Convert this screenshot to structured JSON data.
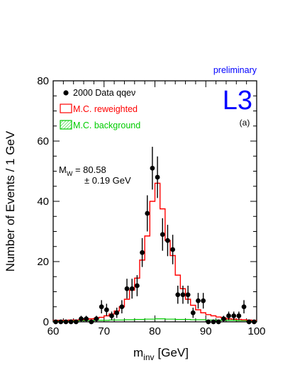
{
  "chart_data": {
    "type": "histogram",
    "header": "preliminary",
    "experiment_logo": "L3",
    "panel_label": "(a)",
    "xlabel": "m",
    "xlabel_sub": "inv",
    "xlabel_unit": "[GeV]",
    "ylabel": "Number of Events / 1 GeV",
    "xlim": [
      60,
      100
    ],
    "ylim": [
      0,
      80
    ],
    "x_ticks": [
      "60",
      "70",
      "80",
      "90",
      "100"
    ],
    "y_ticks": [
      "0",
      "20",
      "40",
      "60",
      "80"
    ],
    "legend": [
      {
        "label": "2000 Data qqeν",
        "marker": "dot"
      },
      {
        "label": "M.C. reweighted",
        "marker": "box-red"
      },
      {
        "label": "M.C. background",
        "marker": "box-green-hatched"
      }
    ],
    "annotation": {
      "line1_main": "M",
      "line1_sub": "W",
      "line1_value": " = 80.58",
      "line2": "± 0.19 GeV"
    },
    "colors": {
      "data": "#000000",
      "mc": "#ff0000",
      "background": "#00cc00",
      "header": "#0000ff",
      "logo": "#0000ff"
    },
    "series": [
      {
        "kind": "data-points",
        "x": [
          60.5,
          61.5,
          62.5,
          63.5,
          64.5,
          65.5,
          66.5,
          67.5,
          68.5,
          69.5,
          70.5,
          71.5,
          72.5,
          73.5,
          74.5,
          75.5,
          76.5,
          77.5,
          78.5,
          79.5,
          80.5,
          81.5,
          82.5,
          83.5,
          84.5,
          85.5,
          86.5,
          87.5,
          88.5,
          89.5,
          90.5,
          91.5,
          92.5,
          93.5,
          94.5,
          95.5,
          96.5,
          97.5,
          98.5,
          99.5
        ],
        "y": [
          0,
          0,
          0,
          0,
          0,
          1,
          1,
          0,
          1,
          5,
          4,
          2,
          3,
          5,
          11,
          11,
          12,
          23,
          36,
          51,
          48,
          29,
          27,
          24,
          9,
          9,
          9,
          3,
          7,
          7,
          0,
          0,
          0,
          1,
          2,
          2,
          2,
          5,
          0,
          0
        ],
        "err": [
          0,
          0,
          0,
          0,
          0,
          1,
          1,
          0,
          1,
          2.2,
          2,
          1.4,
          1.7,
          2.2,
          3.3,
          3.3,
          3.5,
          4.8,
          6,
          7.1,
          6.9,
          5.4,
          5.2,
          4.9,
          3,
          3,
          3,
          1.7,
          2.6,
          2.6,
          0,
          0,
          0,
          1,
          1.4,
          1.4,
          1.4,
          2.2,
          0,
          0
        ]
      },
      {
        "kind": "mc-reweighted",
        "x": [
          60.5,
          61.5,
          62.5,
          63.5,
          64.5,
          65.5,
          66.5,
          67.5,
          68.5,
          69.5,
          70.5,
          71.5,
          72.5,
          73.5,
          74.5,
          75.5,
          76.5,
          77.5,
          78.5,
          79.5,
          80.5,
          81.5,
          82.5,
          83.5,
          84.5,
          85.5,
          86.5,
          87.5,
          88.5,
          89.5,
          90.5,
          91.5,
          92.5,
          93.5,
          94.5,
          95.5,
          96.5,
          97.5,
          98.5,
          99.5
        ],
        "y": [
          0.5,
          0.5,
          0.5,
          0.6,
          0.6,
          0.7,
          0.8,
          1,
          1.2,
          1.5,
          2,
          2.6,
          3.6,
          5,
          7.5,
          10.5,
          14.5,
          20.5,
          28.5,
          40,
          46,
          37.5,
          27,
          22,
          15.5,
          11,
          7.5,
          5.5,
          4,
          3,
          2.4,
          2,
          1.6,
          1.3,
          1,
          0.9,
          0.8,
          0.7,
          0.6,
          0.5
        ]
      },
      {
        "kind": "mc-background",
        "x": [
          60.5,
          61.5,
          62.5,
          63.5,
          64.5,
          65.5,
          66.5,
          67.5,
          68.5,
          69.5,
          70.5,
          71.5,
          72.5,
          73.5,
          74.5,
          75.5,
          76.5,
          77.5,
          78.5,
          79.5,
          80.5,
          81.5,
          82.5,
          83.5,
          84.5,
          85.5,
          86.5,
          87.5,
          88.5,
          89.5,
          90.5,
          91.5,
          92.5,
          93.5,
          94.5,
          95.5,
          96.5,
          97.5,
          98.5,
          99.5
        ],
        "y": [
          0.2,
          0.2,
          0.3,
          0.3,
          0.3,
          0.4,
          0.4,
          0.4,
          0.5,
          0.5,
          0.5,
          0.6,
          0.6,
          0.6,
          0.7,
          0.7,
          0.8,
          0.8,
          0.9,
          0.9,
          1,
          1,
          0.9,
          0.9,
          0.8,
          0.8,
          0.8,
          0.7,
          0.7,
          0.7,
          0.6,
          0.6,
          0.6,
          0.5,
          0.5,
          0.5,
          0.4,
          0.4,
          0.4,
          0.3
        ]
      }
    ]
  }
}
